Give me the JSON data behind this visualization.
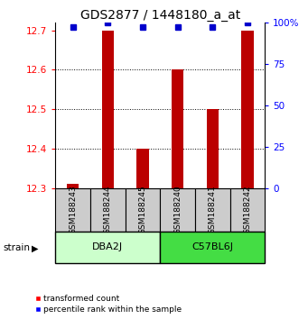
{
  "title": "GDS2877 / 1448180_a_at",
  "samples": [
    "GSM188243",
    "GSM188244",
    "GSM188245",
    "GSM188240",
    "GSM188241",
    "GSM188242"
  ],
  "group_labels": [
    "DBA2J",
    "C57BL6J"
  ],
  "group_colors": [
    "#ccffcc",
    "#44dd44"
  ],
  "bar_values": [
    12.31,
    12.7,
    12.4,
    12.6,
    12.5,
    12.7
  ],
  "percentile_values": [
    97,
    100,
    97,
    97,
    97,
    100
  ],
  "ylim": [
    12.3,
    12.72
  ],
  "yticks_left": [
    12.3,
    12.4,
    12.5,
    12.6,
    12.7
  ],
  "yticks_right": [
    0,
    25,
    50,
    75,
    100
  ],
  "bar_color": "#bb0000",
  "percentile_color": "#0000cc",
  "bar_bottom": 12.3,
  "bar_width": 0.35,
  "sample_box_color": "#cccccc",
  "strain_label": "strain",
  "legend_red_label": "transformed count",
  "legend_blue_label": "percentile rank within the sample",
  "title_fontsize": 10,
  "tick_fontsize": 7.5,
  "label_fontsize": 7.5
}
